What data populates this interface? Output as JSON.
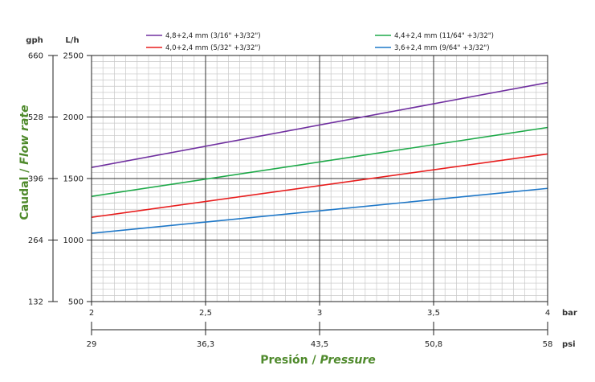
{
  "chart_data": {
    "type": "line",
    "x_unit": "bar",
    "x_secondary_unit": "psi",
    "y_unit": "L/h",
    "y_secondary_unit": "gph",
    "x_ticks": [
      "2",
      "2,5",
      "3",
      "3,5",
      "4"
    ],
    "x_secondary_ticks": [
      "29",
      "36,3",
      "43,5",
      "50,8",
      "58"
    ],
    "y_ticks": [
      "500",
      "1000",
      "1500",
      "2000",
      "2500"
    ],
    "y_secondary_ticks": [
      "132",
      "264",
      "396",
      "528",
      "660"
    ],
    "xlim": [
      2,
      4
    ],
    "ylim": [
      500,
      2500
    ],
    "grid": true,
    "legend_position": "top",
    "xlabel": {
      "part1": "Presión / ",
      "part2": "Pressure"
    },
    "ylabel": {
      "part1": "Caudal / ",
      "part2": "Flow rate"
    },
    "series": [
      {
        "name": "4,8+2,4 mm (3/16\" +3/32\")",
        "color": "#7030a0",
        "x": [
          2,
          4
        ],
        "y": [
          1590,
          2280
        ]
      },
      {
        "name": "4,4+2,4 mm (11/64\" +3/32\")",
        "color": "#1faa4a",
        "x": [
          2,
          4
        ],
        "y": [
          1355,
          1915
        ]
      },
      {
        "name": "4,0+2,4 mm (5/32\" +3/32\")",
        "color": "#e81e1e",
        "x": [
          2,
          4
        ],
        "y": [
          1185,
          1700
        ]
      },
      {
        "name": "3,6+2,4 mm (9/64\" +3/32\")",
        "color": "#1f78c8",
        "x": [
          2,
          4
        ],
        "y": [
          1055,
          1420
        ]
      }
    ]
  }
}
